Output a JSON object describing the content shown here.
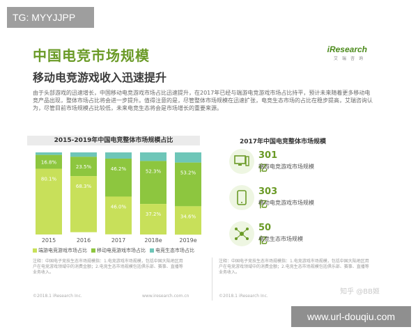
{
  "overlay": {
    "top_left": "TG: MYYJJPP",
    "bottom_right": "www.url-douqiu.com",
    "zhihu": "知乎 @BB姬"
  },
  "slide": {
    "title": "中国电竞市场规模",
    "subtitle": "移动电竞游戏收入迅速提升",
    "logo_main": "iResearch",
    "logo_sub": "艾瑞咨询",
    "intro": "由于头部游戏的迅速增长，中国移动电竞游戏市场占比迅速提升，在2017年已经与端游电竞游戏市场占比持平，预计未来随着更多移动电竞产品出现，整体市场占比将会进一步提升。值得注意的是，尽管整体市场规模在迅速扩张，电竞生态市场的占比在稳步提高，艾瑞咨询认为，尽管目前市场规模占比较低，未来电竞生态将会是市场增长的重要来源。",
    "left_title": "2015-2019年中国电竞整体市场规模占比",
    "right_title": "2017年中国电竞整体市场规模",
    "stats": [
      {
        "value": "301亿",
        "label": "端游电竞游戏市场规模",
        "icon": "desktop-icon"
      },
      {
        "value": "303亿",
        "label": "移动电竞游戏市场规模",
        "icon": "smartphone-icon"
      },
      {
        "value": "50亿",
        "label": "电竞生态市场规模",
        "icon": "network-icon"
      }
    ],
    "note_left": "注释：中国电子竞技生态市场规模指：1.电竞游戏市场规模，包括中国大陆地区用户在电竞游戏领域中的消费金额；2.电竞生态市场规模包括俱乐部、赛事、直播等业务收入。",
    "note_right": "注释：中国电子竞技生态市场规模指：1.电竞游戏市场规模，包括中国大陆地区用户在电竞游戏领域中的消费金额；2.电竞生态市场规模包括俱乐部、赛事、直播等业务收入。",
    "footer_left": "©2018.1 iResearch Inc.",
    "footer_mid": "www.iresearch.com.cn",
    "footer_right": "©2018.1 iResearch Inc."
  },
  "colors": {
    "green_dark": "#8dc63f",
    "green_light": "#c8e05a",
    "teal": "#6ec6b8",
    "title_green": "#6a9a26"
  },
  "chart_data": {
    "type": "bar",
    "stacked": true,
    "percent": true,
    "categories": [
      "2015",
      "2016",
      "2017",
      "2018e",
      "2019e"
    ],
    "series": [
      {
        "name": "电竞生态市场占比",
        "values": [
          3.1,
          5.4,
          7.6,
          10.5,
          12.4
        ],
        "color": "#6ec6b8",
        "labels": [
          "",
          "",
          "",
          "",
          ""
        ]
      },
      {
        "name": "移动电竞游戏市场占比",
        "values": [
          16.8,
          23.5,
          46.2,
          52.3,
          53.2
        ],
        "color": "#8dc63f",
        "labels": [
          "16.8%",
          "23.5%",
          "46.2%",
          "52.3%",
          "53.2%"
        ]
      },
      {
        "name": "端游电竞游戏市场占比",
        "values": [
          80.1,
          68.3,
          46.0,
          37.2,
          34.6
        ],
        "color": "#c8e05a",
        "labels": [
          "80.1%",
          "68.3%",
          "46.0%",
          "37.2%",
          "34.6%"
        ]
      }
    ],
    "ylim": [
      0,
      100
    ]
  }
}
